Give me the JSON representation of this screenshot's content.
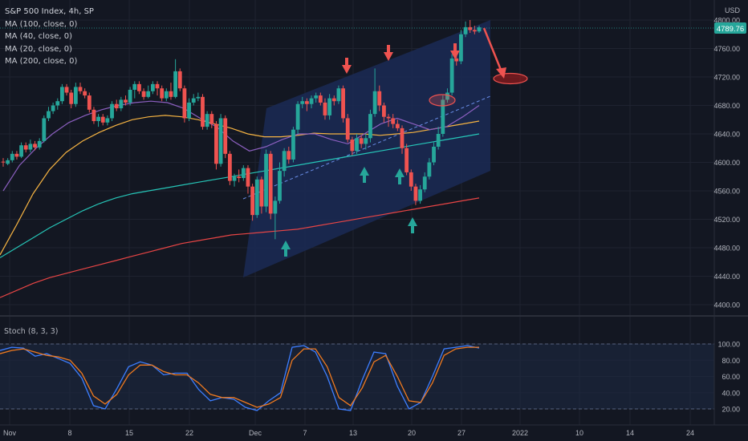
{
  "legend": {
    "title": "S&P 500 Index, 4h, SP",
    "lines": [
      "MA (100, close, 0)",
      "MA (40, close, 0)",
      "MA (20, close, 0)",
      "MA (200, close, 0)"
    ]
  },
  "currency": "USD",
  "price_tag": "4789.76",
  "stoch_label": "Stoch (8, 3, 3)",
  "colors": {
    "background": "#131722",
    "up": "#26a69a",
    "down": "#ef5350",
    "ma100": "#26c6b8",
    "ma40": "#f5b342",
    "ma20": "#8b5fbf",
    "ma200": "#e84545",
    "stoch_k": "#3d7eff",
    "stoch_d": "#f07a1f",
    "channel": "#1e3a8a"
  },
  "chart_data": [
    {
      "type": "candlestick",
      "title": "S&P 500 Index, 4h, SP",
      "ylim": [
        4385,
        4815
      ],
      "y_ticks": [
        "4400.00",
        "4440.00",
        "4480.00",
        "4520.00",
        "4560.00",
        "4600.00",
        "4640.00",
        "4680.00",
        "4720.00",
        "4760.00",
        "4800.00"
      ],
      "x_ticks": [
        "Nov",
        "8",
        "15",
        "22",
        "Dec",
        "7",
        "13",
        "20",
        "27",
        "2022",
        "10",
        "14",
        "24"
      ],
      "candles": [
        [
          4601,
          4600,
          4606,
          4594
        ],
        [
          4598,
          4603,
          4606,
          4596
        ],
        [
          4603,
          4612,
          4616,
          4600
        ],
        [
          4612,
          4608,
          4616,
          4604
        ],
        [
          4608,
          4624,
          4628,
          4606
        ],
        [
          4624,
          4618,
          4628,
          4614
        ],
        [
          4618,
          4626,
          4632,
          4614
        ],
        [
          4626,
          4621,
          4630,
          4617
        ],
        [
          4621,
          4630,
          4634,
          4618
        ],
        [
          4630,
          4662,
          4666,
          4628
        ],
        [
          4662,
          4672,
          4678,
          4658
        ],
        [
          4672,
          4680,
          4684,
          4668
        ],
        [
          4680,
          4686,
          4690,
          4674
        ],
        [
          4686,
          4706,
          4710,
          4682
        ],
        [
          4706,
          4698,
          4710,
          4694
        ],
        [
          4698,
          4682,
          4702,
          4676
        ],
        [
          4682,
          4706,
          4712,
          4678
        ],
        [
          4706,
          4700,
          4712,
          4696
        ],
        [
          4700,
          4694,
          4704,
          4690
        ],
        [
          4694,
          4674,
          4698,
          4670
        ],
        [
          4674,
          4658,
          4678,
          4654
        ],
        [
          4658,
          4664,
          4668,
          4650
        ],
        [
          4664,
          4656,
          4668,
          4652
        ],
        [
          4656,
          4662,
          4666,
          4652
        ],
        [
          4662,
          4682,
          4686,
          4658
        ],
        [
          4682,
          4676,
          4688,
          4672
        ],
        [
          4676,
          4688,
          4692,
          4672
        ],
        [
          4688,
          4684,
          4694,
          4680
        ],
        [
          4684,
          4702,
          4706,
          4680
        ],
        [
          4702,
          4710,
          4714,
          4690
        ],
        [
          4710,
          4700,
          4714,
          4696
        ],
        [
          4700,
          4692,
          4704,
          4688
        ],
        [
          4692,
          4700,
          4708,
          4690
        ],
        [
          4700,
          4710,
          4714,
          4696
        ],
        [
          4710,
          4704,
          4714,
          4694
        ],
        [
          4704,
          4690,
          4708,
          4686
        ],
        [
          4690,
          4700,
          4704,
          4686
        ],
        [
          4700,
          4692,
          4712,
          4688
        ],
        [
          4692,
          4728,
          4745,
          4690
        ],
        [
          4728,
          4704,
          4732,
          4700
        ],
        [
          4704,
          4662,
          4708,
          4656
        ],
        [
          4662,
          4684,
          4690,
          4658
        ],
        [
          4684,
          4690,
          4696,
          4680
        ],
        [
          4690,
          4692,
          4698,
          4686
        ],
        [
          4692,
          4650,
          4696,
          4646
        ],
        [
          4650,
          4668,
          4672,
          4646
        ],
        [
          4668,
          4654,
          4672,
          4648
        ],
        [
          4654,
          4598,
          4658,
          4590
        ],
        [
          4598,
          4662,
          4668,
          4594
        ],
        [
          4662,
          4612,
          4666,
          4606
        ],
        [
          4612,
          4574,
          4616,
          4568
        ],
        [
          4574,
          4580,
          4584,
          4566
        ],
        [
          4580,
          4578,
          4590,
          4572
        ],
        [
          4578,
          4592,
          4596,
          4574
        ],
        [
          4592,
          4566,
          4596,
          4556
        ],
        [
          4566,
          4526,
          4570,
          4518
        ],
        [
          4526,
          4576,
          4580,
          4522
        ],
        [
          4576,
          4538,
          4580,
          4528
        ],
        [
          4538,
          4612,
          4618,
          4530
        ],
        [
          4612,
          4528,
          4616,
          4520
        ],
        [
          4528,
          4546,
          4552,
          4492
        ],
        [
          4546,
          4588,
          4600,
          4542
        ],
        [
          4588,
          4616,
          4620,
          4580
        ],
        [
          4616,
          4604,
          4622,
          4598
        ],
        [
          4604,
          4646,
          4650,
          4600
        ],
        [
          4646,
          4682,
          4686,
          4640
        ],
        [
          4682,
          4686,
          4692,
          4676
        ],
        [
          4686,
          4682,
          4690,
          4672
        ],
        [
          4682,
          4690,
          4694,
          4676
        ],
        [
          4690,
          4694,
          4698,
          4684
        ],
        [
          4694,
          4684,
          4698,
          4680
        ],
        [
          4684,
          4666,
          4690,
          4660
        ],
        [
          4666,
          4690,
          4696,
          4660
        ],
        [
          4690,
          4686,
          4694,
          4680
        ],
        [
          4686,
          4704,
          4708,
          4682
        ],
        [
          4704,
          4662,
          4708,
          4656
        ],
        [
          4662,
          4632,
          4668,
          4628
        ],
        [
          4632,
          4616,
          4636,
          4610
        ],
        [
          4616,
          4634,
          4640,
          4612
        ],
        [
          4634,
          4626,
          4638,
          4620
        ],
        [
          4626,
          4634,
          4640,
          4618
        ],
        [
          4634,
          4668,
          4674,
          4628
        ],
        [
          4668,
          4700,
          4732,
          4664
        ],
        [
          4700,
          4680,
          4708,
          4672
        ],
        [
          4680,
          4664,
          4684,
          4656
        ],
        [
          4664,
          4662,
          4668,
          4650
        ],
        [
          4662,
          4654,
          4668,
          4648
        ],
        [
          4654,
          4648,
          4660,
          4644
        ],
        [
          4648,
          4620,
          4652,
          4612
        ],
        [
          4620,
          4586,
          4626,
          4582
        ],
        [
          4586,
          4566,
          4590,
          4560
        ],
        [
          4566,
          4546,
          4570,
          4540
        ],
        [
          4546,
          4562,
          4568,
          4542
        ],
        [
          4562,
          4580,
          4586,
          4558
        ],
        [
          4580,
          4600,
          4606,
          4576
        ],
        [
          4600,
          4622,
          4628,
          4596
        ],
        [
          4622,
          4640,
          4650,
          4618
        ],
        [
          4640,
          4688,
          4694,
          4636
        ],
        [
          4688,
          4698,
          4704,
          4684
        ],
        [
          4698,
          4746,
          4752,
          4694
        ],
        [
          4746,
          4742,
          4750,
          4736
        ],
        [
          4742,
          4780,
          4786,
          4738
        ],
        [
          4780,
          4790,
          4798,
          4776
        ],
        [
          4790,
          4786,
          4800,
          4782
        ],
        [
          4786,
          4784,
          4792,
          4780
        ],
        [
          4784,
          4789.76,
          4792,
          4782
        ]
      ],
      "series": [
        {
          "name": "MA (100, close, 0)",
          "values": [
            4466,
            4480,
            4494,
            4508,
            4520,
            4532,
            4542,
            4550,
            4556,
            4560,
            4564,
            4568,
            4572,
            4576,
            4580,
            4584,
            4588,
            4592,
            4596,
            4600,
            4604,
            4608,
            4612,
            4616,
            4620,
            4624,
            4628,
            4632,
            4636,
            4640
          ]
        },
        {
          "name": "MA (40, close, 0)",
          "values": [
            4470,
            4512,
            4556,
            4590,
            4614,
            4630,
            4642,
            4652,
            4660,
            4664,
            4666,
            4664,
            4660,
            4654,
            4648,
            4640,
            4636,
            4636,
            4638,
            4641,
            4640,
            4640,
            4640,
            4638,
            4640,
            4642,
            4646,
            4650,
            4654,
            4658
          ]
        },
        {
          "name": "MA (20, close, 0)",
          "values": [
            4560,
            4596,
            4620,
            4640,
            4656,
            4666,
            4674,
            4680,
            4684,
            4686,
            4684,
            4676,
            4662,
            4650,
            4630,
            4616,
            4622,
            4632,
            4640,
            4640,
            4632,
            4626,
            4640,
            4654,
            4662,
            4654,
            4646,
            4650,
            4664,
            4680
          ]
        },
        {
          "name": "MA (200, close, 0)",
          "values": [
            4410,
            4420,
            4430,
            4438,
            4444,
            4450,
            4456,
            4462,
            4468,
            4474,
            4480,
            4486,
            4490,
            4494,
            4498,
            4500,
            4502,
            4504,
            4506,
            4510,
            4514,
            4518,
            4522,
            4526,
            4530,
            4534,
            4538,
            4542,
            4546,
            4550
          ]
        }
      ]
    },
    {
      "type": "line",
      "title": "Stoch (8, 3, 3)",
      "ylim": [
        14,
        100
      ],
      "y_ticks": [
        "20.00",
        "40.00",
        "60.00",
        "80.00",
        "100.00"
      ],
      "series": [
        {
          "name": "%K",
          "values": [
            92,
            96,
            95,
            85,
            88,
            82,
            76,
            58,
            24,
            20,
            45,
            72,
            78,
            74,
            62,
            64,
            64,
            44,
            30,
            34,
            32,
            22,
            18,
            30,
            40,
            96,
            98,
            90,
            60,
            20,
            18,
            56,
            90,
            88,
            48,
            20,
            28,
            60,
            94,
            96,
            98,
            95
          ]
        },
        {
          "name": "%D",
          "values": [
            88,
            92,
            94,
            90,
            86,
            84,
            80,
            64,
            36,
            26,
            38,
            62,
            74,
            74,
            66,
            62,
            62,
            52,
            38,
            34,
            34,
            28,
            22,
            26,
            34,
            80,
            94,
            94,
            72,
            34,
            24,
            46,
            78,
            86,
            60,
            30,
            28,
            52,
            86,
            94,
            96,
            96
          ]
        }
      ]
    }
  ]
}
